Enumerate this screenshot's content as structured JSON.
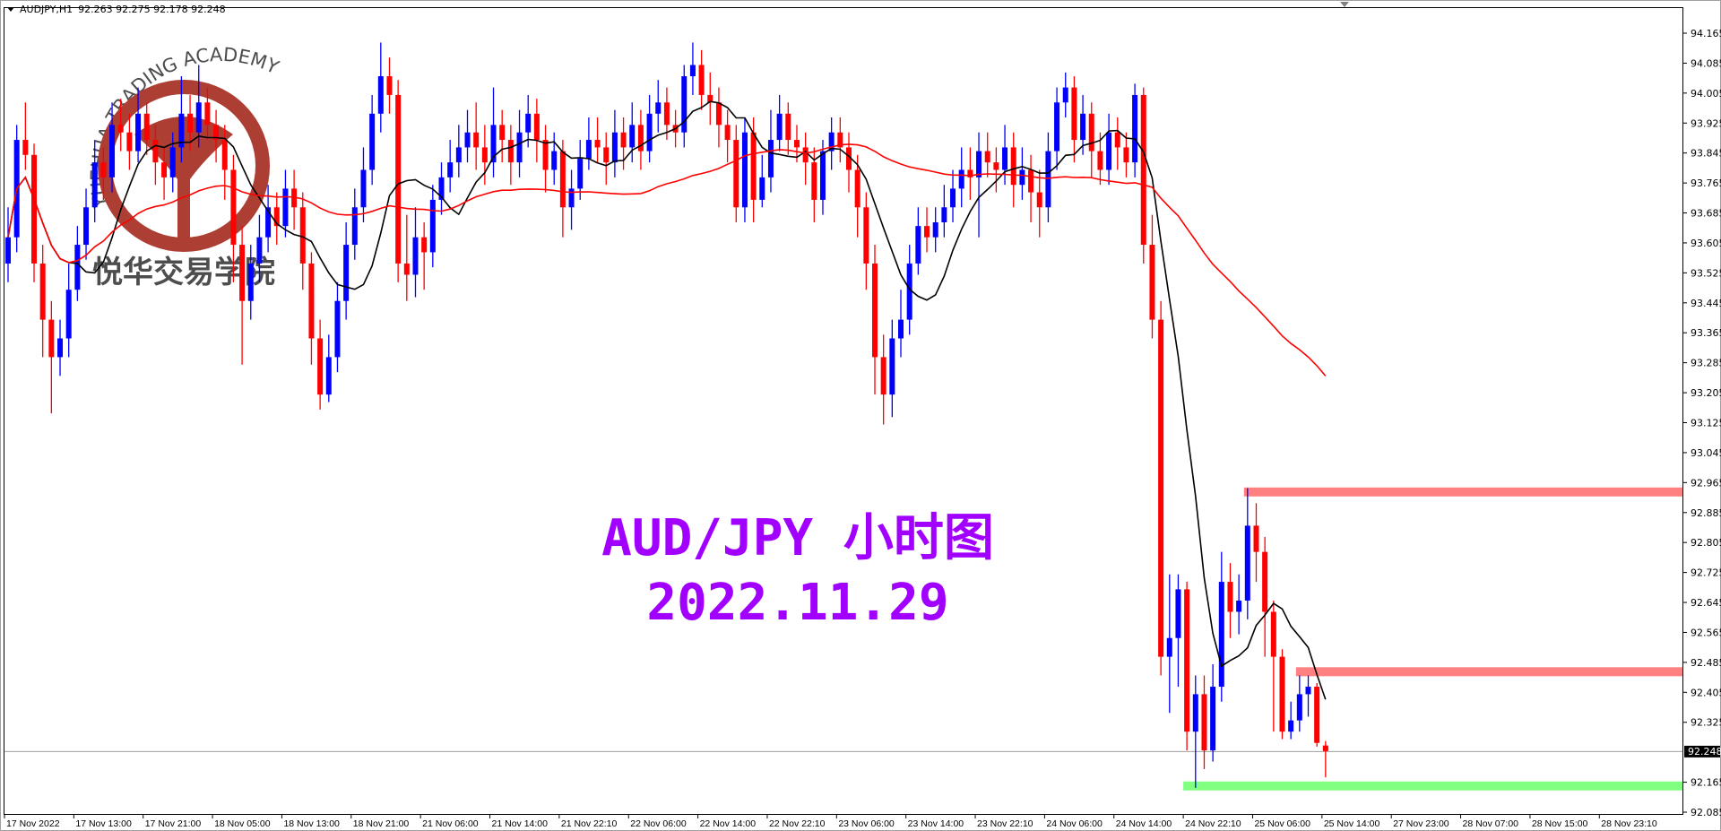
{
  "header": {
    "symbol": "AUDJPY,H1",
    "ohlc": "92.263 92.275 92.178 92.248"
  },
  "watermark": {
    "text_en": "YUEHUA TRADING ACADEMY",
    "text_cn": "悦华交易学院",
    "color": "#a8342a"
  },
  "annotation": {
    "line1": "AUD/JPY 小时图",
    "line2": "2022.11.29",
    "color": "#a100ff"
  },
  "chart_data": {
    "type": "candlestick",
    "symbol": "AUDJPY",
    "timeframe": "H1",
    "ylim": [
      92.085,
      94.165
    ],
    "y_ticks": [
      "94.165",
      "94.085",
      "94.005",
      "93.925",
      "93.845",
      "93.765",
      "93.685",
      "93.605",
      "93.525",
      "93.445",
      "93.365",
      "93.285",
      "93.205",
      "93.125",
      "93.045",
      "92.965",
      "92.885",
      "92.805",
      "92.725",
      "92.645",
      "92.565",
      "92.485",
      "92.405",
      "92.325",
      "92.165",
      "92.085"
    ],
    "x_ticks": [
      "17 Nov 2022",
      "17 Nov 13:00",
      "17 Nov 21:00",
      "18 Nov 05:00",
      "18 Nov 13:00",
      "18 Nov 21:00",
      "21 Nov 06:00",
      "21 Nov 14:00",
      "21 Nov 22:10",
      "22 Nov 06:00",
      "22 Nov 14:00",
      "22 Nov 22:10",
      "23 Nov 06:00",
      "23 Nov 14:00",
      "23 Nov 22:10",
      "24 Nov 06:00",
      "24 Nov 14:00",
      "24 Nov 22:10",
      "25 Nov 06:00",
      "25 Nov 14:00",
      "27 Nov 23:00",
      "28 Nov 07:00",
      "28 Nov 15:00",
      "28 Nov 23:10"
    ],
    "x_tick_every_bars": 8,
    "current_price": "92.248",
    "colors": {
      "bull": "#0000ff",
      "bear": "#ff0000",
      "price_line": "#a0a0a0"
    },
    "moving_averages": [
      {
        "period": 8,
        "color": "#000000"
      },
      {
        "period": 48,
        "color": "#ff0000"
      }
    ],
    "levels": [
      {
        "price": 92.94,
        "color": "#ff8080",
        "from_bar": 143
      },
      {
        "price": 92.46,
        "color": "#ff8080",
        "from_bar": 149
      },
      {
        "price": 92.155,
        "color": "#80ff80",
        "from_bar": 136
      }
    ],
    "ohlc": [
      [
        93.55,
        93.7,
        93.5,
        93.62
      ],
      [
        93.62,
        93.92,
        93.58,
        93.88
      ],
      [
        93.88,
        93.98,
        93.8,
        93.84
      ],
      [
        93.84,
        93.87,
        93.5,
        93.55
      ],
      [
        93.55,
        93.6,
        93.3,
        93.4
      ],
      [
        93.4,
        93.45,
        93.15,
        93.3
      ],
      [
        93.3,
        93.4,
        93.25,
        93.35
      ],
      [
        93.35,
        93.55,
        93.3,
        93.48
      ],
      [
        93.48,
        93.65,
        93.45,
        93.6
      ],
      [
        93.6,
        93.75,
        93.56,
        93.7
      ],
      [
        93.7,
        93.88,
        93.66,
        93.82
      ],
      [
        93.82,
        93.86,
        93.72,
        93.78
      ],
      [
        93.78,
        93.98,
        93.74,
        93.92
      ],
      [
        93.92,
        93.99,
        93.85,
        93.9
      ],
      [
        93.9,
        93.95,
        93.8,
        93.85
      ],
      [
        93.85,
        94.02,
        93.82,
        93.95
      ],
      [
        93.95,
        93.98,
        93.84,
        93.88
      ],
      [
        93.88,
        93.92,
        93.76,
        93.82
      ],
      [
        93.82,
        93.86,
        93.72,
        93.78
      ],
      [
        93.78,
        93.9,
        93.74,
        93.86
      ],
      [
        93.86,
        94.05,
        93.82,
        93.95
      ],
      [
        93.95,
        94.0,
        93.85,
        93.9
      ],
      [
        93.9,
        94.08,
        93.86,
        93.98
      ],
      [
        93.98,
        94.02,
        93.88,
        93.92
      ],
      [
        93.92,
        93.96,
        93.82,
        93.88
      ],
      [
        93.88,
        93.92,
        93.72,
        93.8
      ],
      [
        93.8,
        93.84,
        93.5,
        93.6
      ],
      [
        93.6,
        93.65,
        93.28,
        93.45
      ],
      [
        93.45,
        93.6,
        93.4,
        93.55
      ],
      [
        93.55,
        93.68,
        93.5,
        93.62
      ],
      [
        93.62,
        93.76,
        93.58,
        93.7
      ],
      [
        93.7,
        93.74,
        93.6,
        93.65
      ],
      [
        93.65,
        93.8,
        93.62,
        93.75
      ],
      [
        93.75,
        93.8,
        93.64,
        93.7
      ],
      [
        93.7,
        93.74,
        93.48,
        93.55
      ],
      [
        93.55,
        93.58,
        93.28,
        93.35
      ],
      [
        93.35,
        93.4,
        93.16,
        93.2
      ],
      [
        93.2,
        93.36,
        93.18,
        93.3
      ],
      [
        93.3,
        93.5,
        93.26,
        93.45
      ],
      [
        93.45,
        93.66,
        93.4,
        93.6
      ],
      [
        93.6,
        93.75,
        93.56,
        93.7
      ],
      [
        93.7,
        93.86,
        93.66,
        93.8
      ],
      [
        93.8,
        94.0,
        93.76,
        93.95
      ],
      [
        93.95,
        94.14,
        93.9,
        94.05
      ],
      [
        94.05,
        94.1,
        93.95,
        94.0
      ],
      [
        94.0,
        94.04,
        93.5,
        93.55
      ],
      [
        93.55,
        93.68,
        93.45,
        93.52
      ],
      [
        93.52,
        93.7,
        93.46,
        93.62
      ],
      [
        93.62,
        93.66,
        93.48,
        93.58
      ],
      [
        93.58,
        93.76,
        93.54,
        93.72
      ],
      [
        93.72,
        93.82,
        93.68,
        93.78
      ],
      [
        93.78,
        93.88,
        93.74,
        93.82
      ],
      [
        93.82,
        93.92,
        93.78,
        93.86
      ],
      [
        93.86,
        93.96,
        93.82,
        93.9
      ],
      [
        93.9,
        93.98,
        93.8,
        93.86
      ],
      [
        93.86,
        93.92,
        93.76,
        93.82
      ],
      [
        93.82,
        94.02,
        93.78,
        93.92
      ],
      [
        93.92,
        93.96,
        93.82,
        93.88
      ],
      [
        93.88,
        93.92,
        93.76,
        93.82
      ],
      [
        93.82,
        93.96,
        93.78,
        93.9
      ],
      [
        93.9,
        94.0,
        93.86,
        93.95
      ],
      [
        93.95,
        93.99,
        93.82,
        93.88
      ],
      [
        93.88,
        93.92,
        93.74,
        93.8
      ],
      [
        93.8,
        93.9,
        93.76,
        93.85
      ],
      [
        93.85,
        93.88,
        93.62,
        93.7
      ],
      [
        93.7,
        93.8,
        93.64,
        93.75
      ],
      [
        93.75,
        93.88,
        93.72,
        93.83
      ],
      [
        93.83,
        93.94,
        93.8,
        93.88
      ],
      [
        93.88,
        93.94,
        93.82,
        93.86
      ],
      [
        93.86,
        93.9,
        93.76,
        93.82
      ],
      [
        93.82,
        93.96,
        93.78,
        93.9
      ],
      [
        93.9,
        93.94,
        93.8,
        93.86
      ],
      [
        93.86,
        93.98,
        93.82,
        93.92
      ],
      [
        93.92,
        93.96,
        93.8,
        93.85
      ],
      [
        93.85,
        94.0,
        93.82,
        93.95
      ],
      [
        93.95,
        94.04,
        93.9,
        93.98
      ],
      [
        93.98,
        94.02,
        93.88,
        93.92
      ],
      [
        93.92,
        93.96,
        93.86,
        93.9
      ],
      [
        93.9,
        94.08,
        93.86,
        94.05
      ],
      [
        94.05,
        94.14,
        94.0,
        94.08
      ],
      [
        94.08,
        94.12,
        93.96,
        94.0
      ],
      [
        94.0,
        94.06,
        93.92,
        93.98
      ],
      [
        93.98,
        94.02,
        93.86,
        93.92
      ],
      [
        93.92,
        93.96,
        93.82,
        93.88
      ],
      [
        93.88,
        93.92,
        93.66,
        93.7
      ],
      [
        93.7,
        93.94,
        93.66,
        93.9
      ],
      [
        93.9,
        93.94,
        93.66,
        93.72
      ],
      [
        93.72,
        93.84,
        93.7,
        93.78
      ],
      [
        93.78,
        93.96,
        93.74,
        93.88
      ],
      [
        93.88,
        94.0,
        93.85,
        93.95
      ],
      [
        93.95,
        93.98,
        93.84,
        93.88
      ],
      [
        93.88,
        93.92,
        93.82,
        93.86
      ],
      [
        93.86,
        93.9,
        93.76,
        93.82
      ],
      [
        93.82,
        93.86,
        93.66,
        93.72
      ],
      [
        93.72,
        93.88,
        93.68,
        93.85
      ],
      [
        93.85,
        93.94,
        93.8,
        93.9
      ],
      [
        93.9,
        93.94,
        93.82,
        93.86
      ],
      [
        93.86,
        93.9,
        93.74,
        93.8
      ],
      [
        93.8,
        93.84,
        93.62,
        93.7
      ],
      [
        93.7,
        93.74,
        93.48,
        93.55
      ],
      [
        93.55,
        93.6,
        93.2,
        93.3
      ],
      [
        93.3,
        93.36,
        93.12,
        93.2
      ],
      [
        93.2,
        93.4,
        93.14,
        93.35
      ],
      [
        93.35,
        93.48,
        93.3,
        93.4
      ],
      [
        93.4,
        93.6,
        93.36,
        93.55
      ],
      [
        93.55,
        93.7,
        93.52,
        93.65
      ],
      [
        93.65,
        93.7,
        93.58,
        93.62
      ],
      [
        93.62,
        93.7,
        93.58,
        93.66
      ],
      [
        93.66,
        93.76,
        93.62,
        93.7
      ],
      [
        93.7,
        93.8,
        93.66,
        93.75
      ],
      [
        93.75,
        93.86,
        93.7,
        93.8
      ],
      [
        93.8,
        93.86,
        93.72,
        93.78
      ],
      [
        93.78,
        93.9,
        93.62,
        93.85
      ],
      [
        93.85,
        93.9,
        93.78,
        93.82
      ],
      [
        93.82,
        93.86,
        93.74,
        93.8
      ],
      [
        93.8,
        93.92,
        93.76,
        93.86
      ],
      [
        93.86,
        93.9,
        93.7,
        93.76
      ],
      [
        93.76,
        93.86,
        93.72,
        93.8
      ],
      [
        93.8,
        93.84,
        93.66,
        93.74
      ],
      [
        93.74,
        93.8,
        93.62,
        93.7
      ],
      [
        93.7,
        93.9,
        93.66,
        93.85
      ],
      [
        93.85,
        94.02,
        93.8,
        93.98
      ],
      [
        93.98,
        94.06,
        93.94,
        94.02
      ],
      [
        94.02,
        94.05,
        93.82,
        93.88
      ],
      [
        93.88,
        94.0,
        93.84,
        93.95
      ],
      [
        93.95,
        93.98,
        93.78,
        93.85
      ],
      [
        93.85,
        93.9,
        93.76,
        93.8
      ],
      [
        93.8,
        93.95,
        93.76,
        93.9
      ],
      [
        93.9,
        93.94,
        93.8,
        93.86
      ],
      [
        93.86,
        93.9,
        93.78,
        93.82
      ],
      [
        93.82,
        94.03,
        93.78,
        94.0
      ],
      [
        94.0,
        94.02,
        93.55,
        93.6
      ],
      [
        93.6,
        93.68,
        93.35,
        93.4
      ],
      [
        93.4,
        93.45,
        92.45,
        92.5
      ],
      [
        92.5,
        92.72,
        92.35,
        92.55
      ],
      [
        92.55,
        92.72,
        92.42,
        92.68
      ],
      [
        92.68,
        92.7,
        92.25,
        92.3
      ],
      [
        92.3,
        92.45,
        92.15,
        92.4
      ],
      [
        92.4,
        92.45,
        92.2,
        92.25
      ],
      [
        92.25,
        92.48,
        92.22,
        92.42
      ],
      [
        92.42,
        92.78,
        92.38,
        92.7
      ],
      [
        92.7,
        92.75,
        92.55,
        92.62
      ],
      [
        92.62,
        92.72,
        92.56,
        92.65
      ],
      [
        92.65,
        92.95,
        92.6,
        92.85
      ],
      [
        92.85,
        92.91,
        92.7,
        92.78
      ],
      [
        92.78,
        92.82,
        92.5,
        92.62
      ],
      [
        92.62,
        92.65,
        92.3,
        92.5
      ],
      [
        92.5,
        92.52,
        92.28,
        92.3
      ],
      [
        92.3,
        92.38,
        92.28,
        92.33
      ],
      [
        92.33,
        92.45,
        92.3,
        92.4
      ],
      [
        92.4,
        92.45,
        92.34,
        92.42
      ],
      [
        92.42,
        92.43,
        92.26,
        92.27
      ],
      [
        92.263,
        92.275,
        92.178,
        92.248
      ]
    ]
  }
}
